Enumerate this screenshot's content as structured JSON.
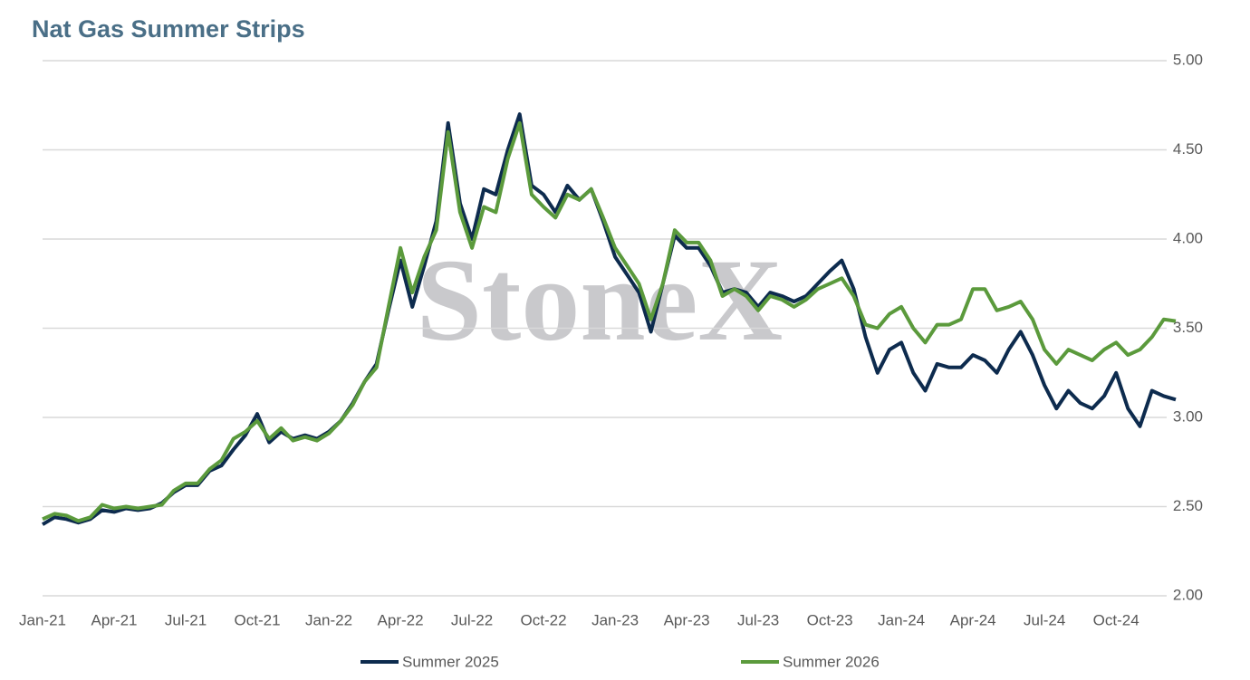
{
  "chart_data": {
    "type": "line",
    "title": "Nat Gas Summer Strips",
    "watermark": "StoneX",
    "categories": [
      "Jan-21",
      null,
      null,
      null,
      null,
      null,
      "Apr-21",
      null,
      null,
      null,
      null,
      null,
      "Jul-21",
      null,
      null,
      null,
      null,
      null,
      "Oct-21",
      null,
      null,
      null,
      null,
      null,
      "Jan-22",
      null,
      null,
      null,
      null,
      null,
      "Apr-22",
      null,
      null,
      null,
      null,
      null,
      "Jul-22",
      null,
      null,
      null,
      null,
      null,
      "Oct-22",
      null,
      null,
      null,
      null,
      null,
      "Jan-23",
      null,
      null,
      null,
      null,
      null,
      "Apr-23",
      null,
      null,
      null,
      null,
      null,
      "Jul-23",
      null,
      null,
      null,
      null,
      null,
      "Oct-23",
      null,
      null,
      null,
      null,
      null,
      "Jan-24",
      null,
      null,
      null,
      null,
      null,
      "Apr-24",
      null,
      null,
      null,
      null,
      null,
      "Jul-24",
      null,
      null,
      null,
      null,
      null,
      "Oct-24",
      null,
      null,
      null,
      null,
      null
    ],
    "series": [
      {
        "name": "Summer 2025",
        "color": "#0d2b4e",
        "values": [
          2.4,
          2.44,
          2.43,
          2.41,
          2.43,
          2.48,
          2.47,
          2.49,
          2.48,
          2.49,
          2.52,
          2.58,
          2.62,
          2.62,
          2.7,
          2.73,
          2.82,
          2.9,
          3.02,
          2.86,
          2.92,
          2.88,
          2.9,
          2.88,
          2.92,
          2.98,
          3.08,
          3.2,
          3.3,
          3.6,
          3.88,
          3.62,
          3.85,
          4.1,
          4.65,
          4.2,
          4.0,
          4.28,
          4.25,
          4.5,
          4.7,
          4.3,
          4.25,
          4.15,
          4.3,
          4.22,
          4.28,
          4.1,
          3.9,
          3.8,
          3.7,
          3.48,
          3.75,
          4.02,
          3.95,
          3.95,
          3.85,
          3.7,
          3.72,
          3.7,
          3.62,
          3.7,
          3.68,
          3.65,
          3.68,
          3.75,
          3.82,
          3.88,
          3.72,
          3.45,
          3.25,
          3.38,
          3.42,
          3.25,
          3.15,
          3.3,
          3.28,
          3.28,
          3.35,
          3.32,
          3.25,
          3.38,
          3.48,
          3.35,
          3.18,
          3.05,
          3.15,
          3.08,
          3.05,
          3.12,
          3.25,
          3.05,
          2.95,
          3.15,
          3.12,
          3.1
        ]
      },
      {
        "name": "Summer 2026",
        "color": "#5b9a3c",
        "values": [
          2.43,
          2.46,
          2.45,
          2.42,
          2.44,
          2.51,
          2.49,
          2.5,
          2.49,
          2.5,
          2.51,
          2.59,
          2.63,
          2.63,
          2.71,
          2.76,
          2.88,
          2.92,
          2.98,
          2.88,
          2.94,
          2.87,
          2.89,
          2.87,
          2.91,
          2.98,
          3.07,
          3.2,
          3.28,
          3.62,
          3.95,
          3.7,
          3.9,
          4.05,
          4.6,
          4.15,
          3.95,
          4.18,
          4.15,
          4.45,
          4.65,
          4.25,
          4.18,
          4.12,
          4.25,
          4.22,
          4.28,
          4.12,
          3.95,
          3.85,
          3.75,
          3.55,
          3.75,
          4.05,
          3.98,
          3.98,
          3.88,
          3.68,
          3.72,
          3.68,
          3.6,
          3.68,
          3.66,
          3.62,
          3.66,
          3.72,
          3.75,
          3.78,
          3.68,
          3.52,
          3.5,
          3.58,
          3.62,
          3.5,
          3.42,
          3.52,
          3.52,
          3.55,
          3.72,
          3.72,
          3.6,
          3.62,
          3.65,
          3.55,
          3.38,
          3.3,
          3.38,
          3.35,
          3.32,
          3.38,
          3.42,
          3.35,
          3.38,
          3.45,
          3.55,
          3.54
        ]
      }
    ],
    "ylim": [
      2,
      5
    ],
    "yticks": [
      {
        "value": 2,
        "label": "2.00"
      },
      {
        "value": 2.5,
        "label": "2.50"
      },
      {
        "value": 3,
        "label": "3.00"
      },
      {
        "value": 3.5,
        "label": "3.50"
      },
      {
        "value": 4,
        "label": "4.00"
      },
      {
        "value": 4.5,
        "label": "4.50"
      },
      {
        "value": 5,
        "label": "5.00"
      }
    ],
    "grid": true,
    "legend": "bottom"
  }
}
